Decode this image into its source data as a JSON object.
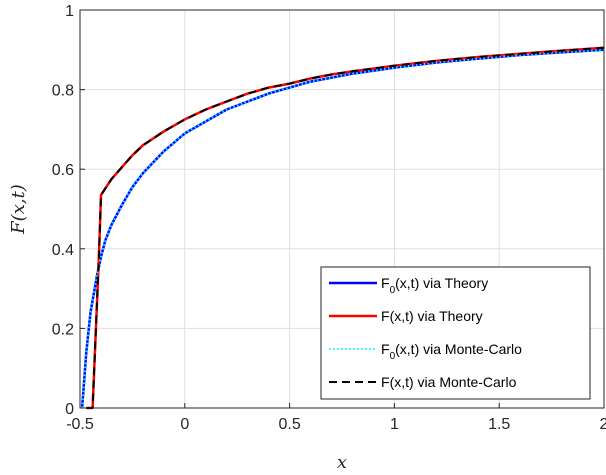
{
  "chart_data": {
    "type": "line",
    "xlabel": "x",
    "ylabel": "F(x,t)",
    "xlim": [
      -0.5,
      2
    ],
    "ylim": [
      0,
      1
    ],
    "grid": true,
    "legend_position": "bottom-right",
    "x_ticks": [
      -0.5,
      0,
      0.5,
      1,
      1.5,
      2
    ],
    "x_tick_labels": [
      "-0.5",
      "0",
      "0.5",
      "1",
      "1.5",
      "2"
    ],
    "y_ticks": [
      0,
      0.2,
      0.4,
      0.6,
      0.8,
      1
    ],
    "y_tick_labels": [
      "0",
      "0.2",
      "0.4",
      "0.6",
      "0.8",
      "1"
    ],
    "series": [
      {
        "name": "F0(x,t) via Theory",
        "label_main": "F",
        "label_sub": "0",
        "label_rest": "(x,t) via Theory",
        "color": "#0000ff",
        "style": "solid",
        "x": [
          -0.49,
          -0.47,
          -0.45,
          -0.42,
          -0.4,
          -0.38,
          -0.35,
          -0.3,
          -0.25,
          -0.2,
          -0.1,
          0.0,
          0.1,
          0.2,
          0.3,
          0.4,
          0.5,
          0.6,
          0.7,
          0.8,
          1.0,
          1.2,
          1.4,
          1.6,
          1.8,
          2.0
        ],
        "y": [
          0.0,
          0.14,
          0.24,
          0.33,
          0.38,
          0.42,
          0.46,
          0.51,
          0.555,
          0.59,
          0.645,
          0.69,
          0.72,
          0.75,
          0.77,
          0.79,
          0.805,
          0.82,
          0.83,
          0.84,
          0.855,
          0.868,
          0.878,
          0.887,
          0.894,
          0.9
        ]
      },
      {
        "name": "F(x,t) via Theory",
        "label_main": "F",
        "label_sub": "",
        "label_rest": "(x,t) via Theory",
        "color": "#ff0000",
        "style": "solid",
        "x": [
          -0.47,
          -0.44,
          -0.41,
          -0.4,
          -0.35,
          -0.3,
          -0.25,
          -0.2,
          -0.1,
          0.0,
          0.1,
          0.2,
          0.3,
          0.4,
          0.5,
          0.6,
          0.7,
          0.8,
          1.0,
          1.2,
          1.4,
          1.6,
          1.8,
          2.0
        ],
        "y": [
          0.0,
          0.0,
          0.38,
          0.535,
          0.575,
          0.605,
          0.635,
          0.66,
          0.695,
          0.725,
          0.75,
          0.77,
          0.79,
          0.805,
          0.815,
          0.828,
          0.838,
          0.846,
          0.86,
          0.872,
          0.882,
          0.89,
          0.898,
          0.905
        ]
      },
      {
        "name": "F0(x,t) via Monte-Carlo",
        "label_main": "F",
        "label_sub": "0",
        "label_rest": "(x,t) via Monte-Carlo",
        "color": "#00ffff",
        "style": "dotted",
        "x": [
          -0.49,
          -0.47,
          -0.45,
          -0.42,
          -0.4,
          -0.38,
          -0.35,
          -0.3,
          -0.25,
          -0.2,
          -0.1,
          0.0,
          0.1,
          0.2,
          0.3,
          0.4,
          0.5,
          0.6,
          0.7,
          0.8,
          1.0,
          1.2,
          1.4,
          1.6,
          1.8,
          2.0
        ],
        "y": [
          0.0,
          0.14,
          0.24,
          0.33,
          0.38,
          0.42,
          0.46,
          0.51,
          0.555,
          0.59,
          0.645,
          0.69,
          0.72,
          0.75,
          0.77,
          0.79,
          0.805,
          0.82,
          0.83,
          0.84,
          0.855,
          0.868,
          0.878,
          0.887,
          0.894,
          0.9
        ]
      },
      {
        "name": "F(x,t) via Monte-Carlo",
        "label_main": "F",
        "label_sub": "",
        "label_rest": "(x,t) via Monte-Carlo",
        "color": "#000000",
        "style": "dashed",
        "x": [
          -0.47,
          -0.44,
          -0.41,
          -0.4,
          -0.35,
          -0.3,
          -0.25,
          -0.2,
          -0.1,
          0.0,
          0.1,
          0.2,
          0.3,
          0.4,
          0.5,
          0.6,
          0.7,
          0.8,
          1.0,
          1.2,
          1.4,
          1.6,
          1.8,
          2.0
        ],
        "y": [
          0.0,
          0.0,
          0.38,
          0.535,
          0.575,
          0.605,
          0.635,
          0.66,
          0.695,
          0.725,
          0.75,
          0.77,
          0.79,
          0.805,
          0.815,
          0.828,
          0.838,
          0.846,
          0.86,
          0.872,
          0.882,
          0.89,
          0.898,
          0.905
        ]
      }
    ]
  }
}
